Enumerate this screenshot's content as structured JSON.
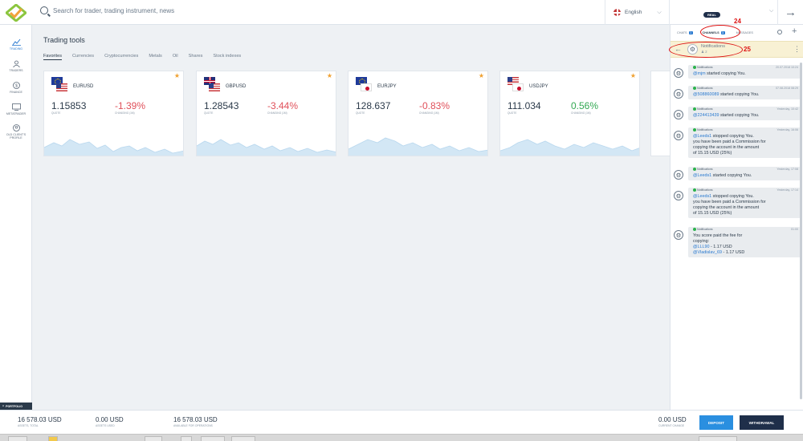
{
  "header": {
    "search": {
      "placeholder": "Search for trader, trading instrument, news"
    },
    "language": "English",
    "account_badge": "REAL"
  },
  "leftnav": {
    "items": [
      {
        "label": "TRADING"
      },
      {
        "label": "TRADERS"
      },
      {
        "label": "FINANCE"
      },
      {
        "label": "METATRADER"
      },
      {
        "label": "OLD CLIENT'S PROFILE"
      }
    ]
  },
  "main": {
    "title": "Trading tools",
    "tabs": [
      "Favorites",
      "Currencies",
      "Cryptocurrencies",
      "Metals",
      "Oil",
      "Shares",
      "Stock indexes"
    ],
    "quote_label": "QUOTE",
    "change_label": "CHANGING (1M)",
    "cards": [
      {
        "pair": "EURUSD",
        "quote": "1.15853",
        "change": "-1.39%",
        "direction": "neg"
      },
      {
        "pair": "GBPUSD",
        "quote": "1.28543",
        "change": "-3.44%",
        "direction": "neg"
      },
      {
        "pair": "EURJPY",
        "quote": "128.637",
        "change": "-0.83%",
        "direction": "neg"
      },
      {
        "pair": "USDJPY",
        "quote": "111.034",
        "change": "0.56%",
        "direction": "pos"
      }
    ]
  },
  "right_panel": {
    "tabs": {
      "chats": "CHATS",
      "chats_count": "1",
      "channels": "CHANNELS",
      "channels_count": "1",
      "messages": "MESSAGES"
    },
    "annotations": {
      "a24": "24",
      "a25": "25"
    },
    "channel": {
      "title": "Notifications",
      "members": "2"
    },
    "messages": [
      {
        "sender": "Notifications",
        "time": "20.07.2018 10:24",
        "mention": "@mjm",
        "text": " started copying You."
      },
      {
        "sender": "Notifications",
        "time": "07.08.2018 08:29",
        "mention": "@508860089",
        "text": " started copying You."
      },
      {
        "sender": "Notifications",
        "time": "Yesterday, 10:42",
        "mention": "@224413439",
        "text": " started copying You."
      },
      {
        "sender": "Notifications",
        "time": "Yesterday, 16:06",
        "mention": "@Leeds1",
        "text": " stopped copying You.",
        "lines": [
          "you have been paid a Commission for",
          "copying the account in the amount",
          "of 15.15 USD (25%)"
        ]
      },
      {
        "sender": "Notifications",
        "time": "Yesterday, 17:08",
        "mention": "@Leeds1",
        "text": " started copying You."
      },
      {
        "sender": "Notifications",
        "time": "Yesterday, 17:14",
        "mention": "@Leeds1",
        "text": " stopped copying You.",
        "lines": [
          "you have been paid a Commission for",
          "copying the account in the amount",
          "of 15.15 USD (25%)"
        ]
      },
      {
        "sender": "Notifications",
        "time": "01:00",
        "text_lines": [
          "You score paid the fee for",
          "copying:"
        ],
        "fees": [
          {
            "mention": "@LLL90",
            "amount": " - 1.17 USD"
          },
          {
            "mention": "@Vladislav_69",
            "amount": " - 1.17 USD"
          }
        ]
      }
    ]
  },
  "bottom": {
    "portfolio_tab": "PORTFOLIO",
    "assets_total": {
      "value": "16 578.03 USD",
      "label": "ASSETS, TOTAL"
    },
    "assets_used": {
      "value": "0.00 USD",
      "label": "ASSETS USED"
    },
    "available": {
      "value": "16 578.03 USD",
      "label": "AVAILABLE FOR OPERATIONS"
    },
    "current_change": {
      "value": "0.00 USD",
      "label": "CURRENT CHANGE"
    },
    "deposit_label": "DEPOSIT",
    "withdrawal_label": "WITHDRAWAL"
  },
  "colors": {
    "accent": "#2a7ad0",
    "negative": "#e0505a",
    "positive": "#32a852",
    "dark": "#1f2f4a"
  }
}
